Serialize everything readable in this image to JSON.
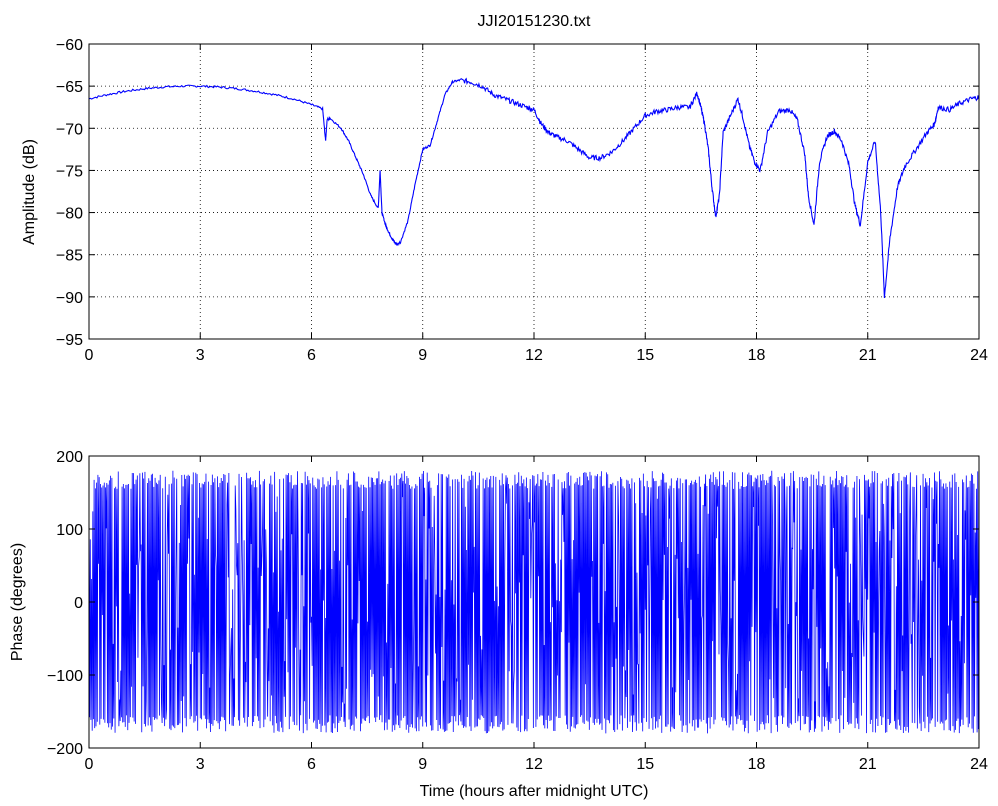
{
  "figure": {
    "title": "JJI20151230.txt"
  },
  "style": {
    "line_color": "#0000ff",
    "axis_color": "#000000",
    "grid_color": "#000000"
  },
  "chart_data": [
    {
      "type": "line",
      "title": "JJI20151230.txt",
      "xlabel": "",
      "ylabel": "Amplitude (dB)",
      "xlim": [
        0,
        24
      ],
      "ylim": [
        -95,
        -60
      ],
      "xticks": [
        0,
        3,
        6,
        9,
        12,
        15,
        18,
        21,
        24
      ],
      "yticks": [
        -95,
        -90,
        -85,
        -80,
        -75,
        -70,
        -65,
        -60
      ],
      "xtick_labels": [
        "0",
        "3",
        "6",
        "9",
        "12",
        "15",
        "18",
        "21",
        "24"
      ],
      "ytick_labels": [
        "−95",
        "−90",
        "−85",
        "−80",
        "−75",
        "−70",
        "−65",
        "−60"
      ],
      "grid": true,
      "series": [
        {
          "color": "#0000ff",
          "x": [
            0,
            0.5,
            1.0,
            1.5,
            2.0,
            2.5,
            3.0,
            3.5,
            4.0,
            4.5,
            5.0,
            5.5,
            6.0,
            6.3,
            6.38,
            6.42,
            6.5,
            6.8,
            7.0,
            7.2,
            7.4,
            7.6,
            7.8,
            7.85,
            7.9,
            8.0,
            8.1,
            8.2,
            8.3,
            8.4,
            8.6,
            8.8,
            9.0,
            9.2,
            9.4,
            9.6,
            9.8,
            10.0,
            10.3,
            10.6,
            10.9,
            11.2,
            11.5,
            11.8,
            12.0,
            12.2,
            12.4,
            12.6,
            12.9,
            13.2,
            13.5,
            13.8,
            14.1,
            14.4,
            14.7,
            15.0,
            15.3,
            15.6,
            15.9,
            16.2,
            16.4,
            16.5,
            16.6,
            16.7,
            16.8,
            16.9,
            17.0,
            17.1,
            17.3,
            17.5,
            17.65,
            17.8,
            17.95,
            18.1,
            18.3,
            18.6,
            18.9,
            19.1,
            19.3,
            19.4,
            19.55,
            19.7,
            19.9,
            20.1,
            20.3,
            20.5,
            20.65,
            20.8,
            21.0,
            21.2,
            21.35,
            21.45,
            21.6,
            21.8,
            22.0,
            22.3,
            22.6,
            22.8,
            22.9,
            23.2,
            23.5,
            23.8,
            24.0
          ],
          "y": [
            -66.5,
            -66.0,
            -65.6,
            -65.3,
            -65.1,
            -65.0,
            -65.0,
            -65.1,
            -65.3,
            -65.6,
            -66.0,
            -66.5,
            -67.2,
            -67.7,
            -71.5,
            -69.0,
            -68.8,
            -70.0,
            -71.5,
            -73.5,
            -75.5,
            -78.0,
            -79.5,
            -75.0,
            -80.0,
            -81.5,
            -82.5,
            -83.3,
            -83.8,
            -83.5,
            -81.0,
            -76.5,
            -72.5,
            -72.0,
            -69.0,
            -66.0,
            -64.5,
            -64.3,
            -64.5,
            -65.0,
            -66.0,
            -66.5,
            -67.0,
            -67.5,
            -67.8,
            -69.5,
            -70.5,
            -71.0,
            -71.5,
            -72.5,
            -73.5,
            -73.5,
            -72.8,
            -71.5,
            -70.0,
            -68.5,
            -68.0,
            -67.8,
            -67.5,
            -67.5,
            -65.8,
            -67.5,
            -69.5,
            -72.5,
            -77.0,
            -80.5,
            -78.0,
            -70.5,
            -68.5,
            -66.5,
            -69.0,
            -72.0,
            -74.0,
            -75.0,
            -70.5,
            -68.0,
            -67.8,
            -69.0,
            -73.0,
            -78.0,
            -81.5,
            -74.0,
            -71.0,
            -70.3,
            -71.5,
            -74.5,
            -79.0,
            -81.5,
            -74.0,
            -71.5,
            -80.0,
            -90.0,
            -83.0,
            -77.0,
            -74.5,
            -72.5,
            -70.5,
            -69.5,
            -67.5,
            -67.8,
            -67.0,
            -66.5,
            -66.3
          ]
        }
      ]
    },
    {
      "type": "line",
      "title": "",
      "xlabel": "Time (hours after midnight UTC)",
      "ylabel": "Phase (degrees)",
      "xlim": [
        0,
        24
      ],
      "ylim": [
        -200,
        200
      ],
      "xticks": [
        0,
        3,
        6,
        9,
        12,
        15,
        18,
        21,
        24
      ],
      "yticks": [
        -200,
        -100,
        0,
        100,
        200
      ],
      "xtick_labels": [
        "0",
        "3",
        "6",
        "9",
        "12",
        "15",
        "18",
        "21",
        "24"
      ],
      "ytick_labels": [
        "−200",
        "−100",
        "0",
        "100",
        "200"
      ],
      "grid": false,
      "series": [
        {
          "color": "#0000ff",
          "description_range": [
            -180,
            180
          ],
          "wrap_period_hours": 0.035
        }
      ]
    }
  ]
}
